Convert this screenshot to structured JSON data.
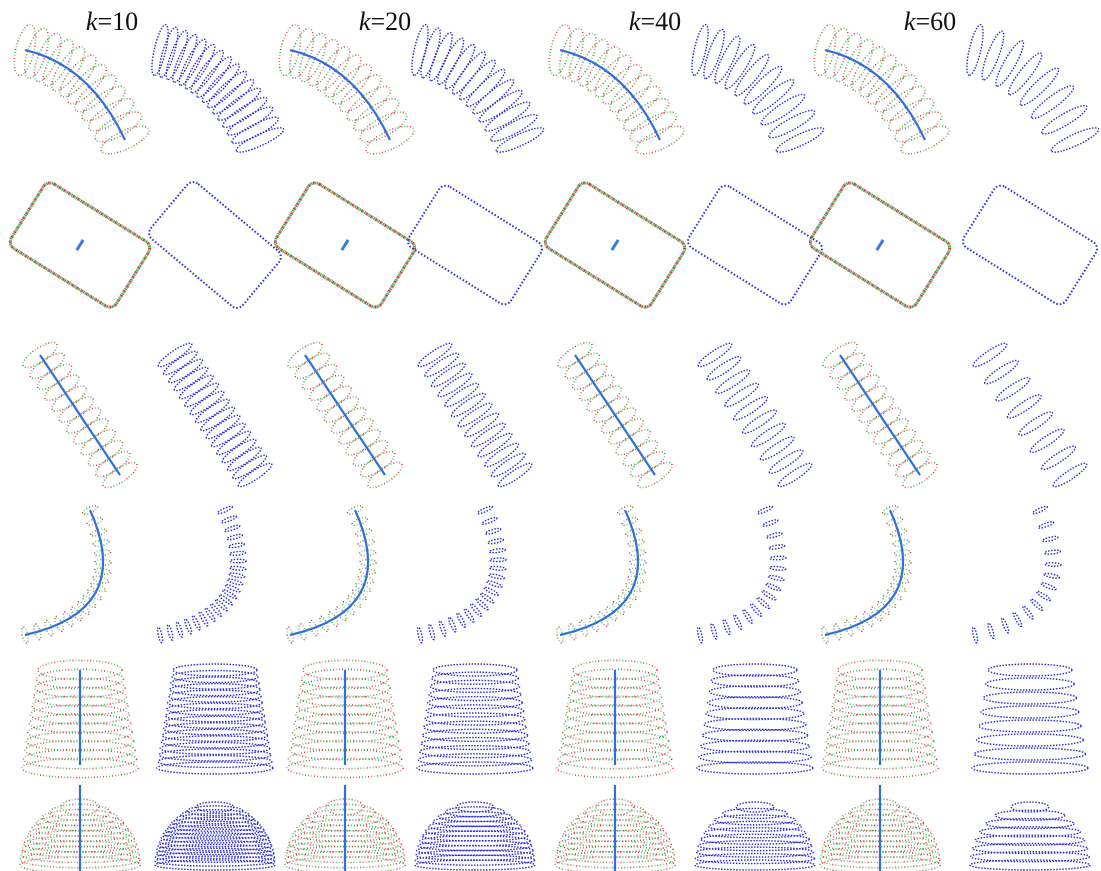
{
  "header": {
    "columns": [
      {
        "symbol": "k",
        "value": "=10"
      },
      {
        "symbol": "k",
        "value": "=20"
      },
      {
        "symbol": "k",
        "value": "=40"
      },
      {
        "symbol": "k",
        "value": "=60"
      }
    ]
  }
}
